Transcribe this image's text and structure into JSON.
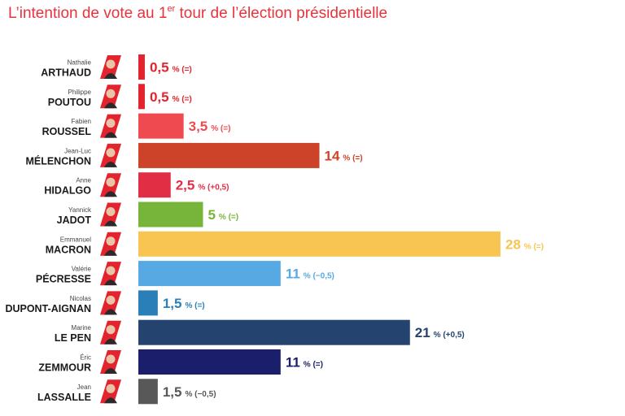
{
  "title": {
    "main": "L’intention de vote au 1",
    "sup": "er",
    "rest": " tour de l’élection présidentielle"
  },
  "chart_data": {
    "type": "bar",
    "orientation": "horizontal",
    "title": "L’intention de vote au 1er tour de l’élection présidentielle",
    "unit": "%",
    "xlim": [
      0,
      28
    ],
    "candidates": [
      {
        "first": "Nathalie",
        "last": "ARTHAUD",
        "value": 0.5,
        "value_label": "0,5",
        "change": "(=)",
        "color": "#e3232e",
        "badge": "#e3232e"
      },
      {
        "first": "Philippe",
        "last": "POUTOU",
        "value": 0.5,
        "value_label": "0,5",
        "change": "(=)",
        "color": "#e3232e",
        "badge": "#e3232e"
      },
      {
        "first": "Fabien",
        "last": "ROUSSEL",
        "value": 3.5,
        "value_label": "3,5",
        "change": "(=)",
        "color": "#ee4a50",
        "badge": "#e3232e"
      },
      {
        "first": "Jean-Luc",
        "last": "MÉLENCHON",
        "value": 14,
        "value_label": "14",
        "change": "(=)",
        "color": "#cc4329",
        "badge": "#e3232e"
      },
      {
        "first": "Anne",
        "last": "HIDALGO",
        "value": 2.5,
        "value_label": "2,5",
        "change": "(+0,5)",
        "color": "#e22e45",
        "badge": "#e3232e"
      },
      {
        "first": "Yannick",
        "last": "JADOT",
        "value": 5,
        "value_label": "5",
        "change": "(=)",
        "color": "#77b43a",
        "badge": "#e3232e"
      },
      {
        "first": "Emmanuel",
        "last": "MACRON",
        "value": 28,
        "value_label": "28",
        "change": "(=)",
        "color": "#f8c452",
        "badge": "#e3232e"
      },
      {
        "first": "Valérie",
        "last": "PÉCRESSE",
        "value": 11,
        "value_label": "11",
        "change": "(−0,5)",
        "color": "#56a9e3",
        "badge": "#e3232e"
      },
      {
        "first": "Nicolas",
        "last": "DUPONT-AIGNAN",
        "value": 1.5,
        "value_label": "1,5",
        "change": "(=)",
        "color": "#2b7fb8",
        "badge": "#e3232e"
      },
      {
        "first": "Marine",
        "last": "LE PEN",
        "value": 21,
        "value_label": "21",
        "change": "(+0,5)",
        "color": "#24446f",
        "badge": "#e3232e"
      },
      {
        "first": "Éric",
        "last": "ZEMMOUR",
        "value": 11,
        "value_label": "11",
        "change": "(=)",
        "color": "#1b1f6b",
        "badge": "#e3232e"
      },
      {
        "first": "Jean",
        "last": "LASSALLE",
        "value": 1.5,
        "value_label": "1,5",
        "change": "(−0,5)",
        "color": "#585858",
        "badge": "#e3232e"
      }
    ]
  }
}
